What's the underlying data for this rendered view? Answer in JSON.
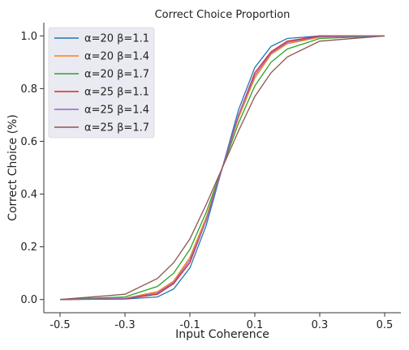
{
  "chart_data": {
    "type": "line",
    "title": "Correct Choice Proportion",
    "xlabel": "Input Coherence",
    "ylabel": "Correct Choice (%)",
    "xlim": [
      -0.55,
      0.55
    ],
    "ylim": [
      -0.05,
      1.05
    ],
    "xticks": [
      -0.5,
      -0.3,
      -0.1,
      0.1,
      0.3,
      0.5
    ],
    "xtick_labels": [
      "-0.5",
      "-0.3",
      "-0.1",
      "0.1",
      "0.3",
      "0.5"
    ],
    "yticks": [
      0.0,
      0.2,
      0.4,
      0.6,
      0.8,
      1.0
    ],
    "ytick_labels": [
      "0.0",
      "0.2",
      "0.4",
      "0.6",
      "0.8",
      "1.0"
    ],
    "grid": false,
    "legend_position": "top-left",
    "series": [
      {
        "name": "α=20 β=1.1",
        "color": "#1f77b4",
        "x": [
          -0.5,
          -0.3,
          -0.2,
          -0.15,
          -0.1,
          -0.05,
          0.0,
          0.05,
          0.1,
          0.15,
          0.2,
          0.3,
          0.5
        ],
        "values": [
          0.0,
          0.002,
          0.01,
          0.04,
          0.12,
          0.28,
          0.5,
          0.72,
          0.88,
          0.96,
          0.99,
          1.0,
          1.0
        ]
      },
      {
        "name": "α=20 β=1.4",
        "color": "#ff7f0e",
        "x": [
          -0.5,
          -0.3,
          -0.2,
          -0.15,
          -0.1,
          -0.05,
          0.0,
          0.05,
          0.1,
          0.15,
          0.2,
          0.3,
          0.5
        ],
        "values": [
          0.0,
          0.005,
          0.03,
          0.07,
          0.16,
          0.31,
          0.5,
          0.69,
          0.84,
          0.93,
          0.97,
          0.995,
          1.0
        ]
      },
      {
        "name": "α=20 β=1.7",
        "color": "#2ca02c",
        "x": [
          -0.5,
          -0.3,
          -0.2,
          -0.15,
          -0.1,
          -0.05,
          0.0,
          0.05,
          0.1,
          0.15,
          0.2,
          0.3,
          0.5
        ],
        "values": [
          0.0,
          0.01,
          0.05,
          0.1,
          0.19,
          0.33,
          0.5,
          0.67,
          0.81,
          0.9,
          0.95,
          0.99,
          1.0
        ]
      },
      {
        "name": "α=25 β=1.1",
        "color": "#d62728",
        "x": [
          -0.5,
          -0.3,
          -0.2,
          -0.15,
          -0.1,
          -0.05,
          0.0,
          0.05,
          0.1,
          0.15,
          0.2,
          0.3,
          0.5
        ],
        "values": [
          0.0,
          0.003,
          0.02,
          0.06,
          0.14,
          0.3,
          0.5,
          0.7,
          0.86,
          0.94,
          0.98,
          1.0,
          1.0
        ]
      },
      {
        "name": "α=25 β=1.4",
        "color": "#9467bd",
        "x": [
          -0.5,
          -0.3,
          -0.2,
          -0.15,
          -0.1,
          -0.05,
          0.0,
          0.05,
          0.1,
          0.15,
          0.2,
          0.3,
          0.5
        ],
        "values": [
          0.0,
          0.004,
          0.025,
          0.065,
          0.15,
          0.3,
          0.5,
          0.7,
          0.85,
          0.935,
          0.975,
          0.997,
          1.0
        ]
      },
      {
        "name": "α=25 β=1.7",
        "color": "#8c564b",
        "x": [
          -0.5,
          -0.3,
          -0.2,
          -0.15,
          -0.1,
          -0.05,
          0.0,
          0.05,
          0.1,
          0.15,
          0.2,
          0.3,
          0.5
        ],
        "values": [
          0.0,
          0.02,
          0.08,
          0.14,
          0.23,
          0.36,
          0.5,
          0.64,
          0.77,
          0.86,
          0.92,
          0.98,
          1.0
        ]
      }
    ]
  }
}
